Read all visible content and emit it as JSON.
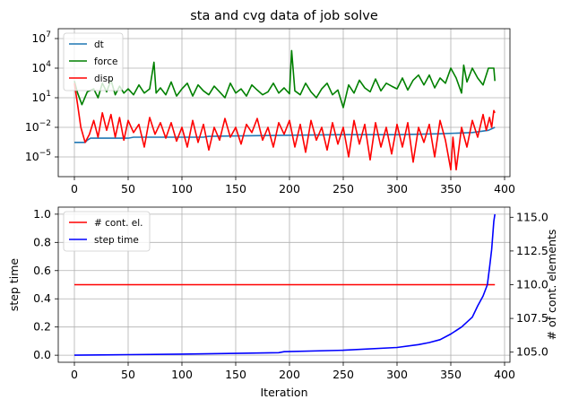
{
  "chart_data": [
    {
      "type": "line",
      "title": "sta and cvg data of job solve",
      "xlabel": "",
      "ylabel": "",
      "xlim": [
        -15,
        405
      ],
      "ylim": [
        1e-07,
        100000000.0
      ],
      "yscale": "log",
      "grid": true,
      "xticks": [
        0,
        50,
        100,
        150,
        200,
        250,
        300,
        350,
        400
      ],
      "xtick_labels": [
        "0",
        "50",
        "100",
        "150",
        "200",
        "250",
        "300",
        "350",
        "400"
      ],
      "ytick_exponents": [
        -5,
        -2,
        1,
        4,
        7
      ],
      "legend_position": "top-left",
      "series": [
        {
          "name": "dt",
          "color": "#1f77b4",
          "points": [
            [
              0,
              0.0003
            ],
            [
              10,
              0.0003
            ],
            [
              12,
              0.0005
            ],
            [
              15,
              0.0008
            ],
            [
              50,
              0.0008
            ],
            [
              55,
              0.001
            ],
            [
              120,
              0.001
            ],
            [
              125,
              0.0012
            ],
            [
              160,
              0.0014
            ],
            [
              200,
              0.0016
            ],
            [
              250,
              0.0018
            ],
            [
              300,
              0.0018
            ],
            [
              340,
              0.0022
            ],
            [
              370,
              0.003
            ],
            [
              385,
              0.005
            ],
            [
              391,
              0.01
            ]
          ]
        },
        {
          "name": "force",
          "color": "#008000",
          "points": [
            [
              0,
              500
            ],
            [
              3,
              30
            ],
            [
              7,
              2
            ],
            [
              12,
              40
            ],
            [
              18,
              80
            ],
            [
              22,
              10
            ],
            [
              26,
              300
            ],
            [
              30,
              40
            ],
            [
              34,
              600
            ],
            [
              38,
              20
            ],
            [
              42,
              150
            ],
            [
              46,
              30
            ],
            [
              50,
              80
            ],
            [
              55,
              20
            ],
            [
              60,
              200
            ],
            [
              65,
              30
            ],
            [
              70,
              80
            ],
            [
              74,
              40000
            ],
            [
              76,
              30
            ],
            [
              80,
              100
            ],
            [
              85,
              20
            ],
            [
              90,
              400
            ],
            [
              95,
              15
            ],
            [
              100,
              80
            ],
            [
              105,
              300
            ],
            [
              110,
              15
            ],
            [
              115,
              200
            ],
            [
              120,
              50
            ],
            [
              125,
              20
            ],
            [
              130,
              150
            ],
            [
              135,
              40
            ],
            [
              140,
              10
            ],
            [
              145,
              300
            ],
            [
              150,
              30
            ],
            [
              155,
              80
            ],
            [
              160,
              15
            ],
            [
              165,
              200
            ],
            [
              170,
              60
            ],
            [
              175,
              20
            ],
            [
              180,
              40
            ],
            [
              185,
              300
            ],
            [
              190,
              30
            ],
            [
              195,
              100
            ],
            [
              200,
              25
            ],
            [
              202,
              600000
            ],
            [
              205,
              50
            ],
            [
              210,
              20
            ],
            [
              215,
              300
            ],
            [
              220,
              40
            ],
            [
              225,
              10
            ],
            [
              230,
              80
            ],
            [
              235,
              300
            ],
            [
              240,
              20
            ],
            [
              245,
              60
            ],
            [
              250,
              1
            ],
            [
              255,
              200
            ],
            [
              260,
              30
            ],
            [
              265,
              600
            ],
            [
              270,
              100
            ],
            [
              275,
              40
            ],
            [
              280,
              800
            ],
            [
              285,
              50
            ],
            [
              290,
              300
            ],
            [
              295,
              150
            ],
            [
              300,
              80
            ],
            [
              305,
              1000
            ],
            [
              310,
              60
            ],
            [
              315,
              600
            ],
            [
              320,
              2000
            ],
            [
              325,
              200
            ],
            [
              330,
              2000
            ],
            [
              335,
              100
            ],
            [
              340,
              1000
            ],
            [
              345,
              300
            ],
            [
              350,
              10000
            ],
            [
              355,
              1000
            ],
            [
              360,
              30
            ],
            [
              362,
              20000
            ],
            [
              365,
              400
            ],
            [
              370,
              10000
            ],
            [
              375,
              1000
            ],
            [
              380,
              200
            ],
            [
              385,
              10000
            ],
            [
              390,
              10000
            ],
            [
              391,
              500
            ]
          ]
        },
        {
          "name": "disp",
          "color": "#ff0000",
          "points": [
            [
              0,
              300
            ],
            [
              3,
              2
            ],
            [
              6,
              0.01
            ],
            [
              10,
              0.0003
            ],
            [
              14,
              0.002
            ],
            [
              18,
              0.05
            ],
            [
              22,
              0.001
            ],
            [
              26,
              0.3
            ],
            [
              30,
              0.005
            ],
            [
              34,
              0.2
            ],
            [
              38,
              0.001
            ],
            [
              42,
              0.1
            ],
            [
              46,
              0.0005
            ],
            [
              50,
              0.05
            ],
            [
              55,
              0.003
            ],
            [
              60,
              0.02
            ],
            [
              65,
              0.0001
            ],
            [
              70,
              0.1
            ],
            [
              75,
              0.002
            ],
            [
              80,
              0.03
            ],
            [
              85,
              0.0008
            ],
            [
              90,
              0.03
            ],
            [
              95,
              0.0004
            ],
            [
              100,
              0.01
            ],
            [
              105,
              0.0001
            ],
            [
              110,
              0.05
            ],
            [
              115,
              0.0003
            ],
            [
              120,
              0.02
            ],
            [
              125,
              5e-05
            ],
            [
              130,
              0.01
            ],
            [
              135,
              0.0005
            ],
            [
              140,
              0.08
            ],
            [
              145,
              0.001
            ],
            [
              150,
              0.01
            ],
            [
              155,
              0.0002
            ],
            [
              160,
              0.02
            ],
            [
              165,
              0.003
            ],
            [
              170,
              0.08
            ],
            [
              175,
              0.0005
            ],
            [
              180,
              0.01
            ],
            [
              185,
              0.0001
            ],
            [
              190,
              0.03
            ],
            [
              195,
              0.002
            ],
            [
              200,
              0.05
            ],
            [
              205,
              0.0001
            ],
            [
              210,
              0.02
            ],
            [
              215,
              3e-05
            ],
            [
              220,
              0.05
            ],
            [
              225,
              0.0005
            ],
            [
              230,
              0.01
            ],
            [
              235,
              5e-05
            ],
            [
              240,
              0.03
            ],
            [
              245,
              0.0002
            ],
            [
              250,
              0.01
            ],
            [
              255,
              1e-05
            ],
            [
              260,
              0.05
            ],
            [
              265,
              0.0002
            ],
            [
              270,
              0.02
            ],
            [
              275,
              5e-06
            ],
            [
              280,
              0.03
            ],
            [
              285,
              0.0001
            ],
            [
              290,
              0.01
            ],
            [
              295,
              2e-05
            ],
            [
              300,
              0.02
            ],
            [
              305,
              0.0001
            ],
            [
              310,
              0.03
            ],
            [
              315,
              3e-06
            ],
            [
              320,
              0.01
            ],
            [
              325,
              0.0003
            ],
            [
              330,
              0.02
            ],
            [
              335,
              1e-05
            ],
            [
              340,
              0.05
            ],
            [
              345,
              0.0005
            ],
            [
              350,
              5e-07
            ],
            [
              352,
              0.001
            ],
            [
              355,
              5e-07
            ],
            [
              360,
              0.01
            ],
            [
              365,
              0.0001
            ],
            [
              370,
              0.05
            ],
            [
              375,
              0.001
            ],
            [
              380,
              0.2
            ],
            [
              383,
              0.005
            ],
            [
              386,
              0.1
            ],
            [
              388,
              0.01
            ],
            [
              390,
              0.5
            ],
            [
              391,
              0.3
            ]
          ]
        }
      ]
    },
    {
      "type": "line",
      "title": "",
      "xlabel": "Iteration",
      "ylabel": "step time",
      "y2label": "# of cont. elements",
      "xlim": [
        -15,
        405
      ],
      "ylim": [
        -0.05,
        1.05
      ],
      "y2lim": [
        104.25,
        115.75
      ],
      "grid": true,
      "xticks": [
        0,
        50,
        100,
        150,
        200,
        250,
        300,
        350,
        400
      ],
      "xtick_labels": [
        "0",
        "50",
        "100",
        "150",
        "200",
        "250",
        "300",
        "350",
        "400"
      ],
      "yticks": [
        0.0,
        0.2,
        0.4,
        0.6,
        0.8,
        1.0
      ],
      "ytick_labels": [
        "0.0",
        "0.2",
        "0.4",
        "0.6",
        "0.8",
        "1.0"
      ],
      "y2ticks": [
        105.0,
        107.5,
        110.0,
        112.5,
        115.0
      ],
      "y2tick_labels": [
        "105.0",
        "107.5",
        "110.0",
        "112.5",
        "115.0"
      ],
      "legend_position": "top-left",
      "series": [
        {
          "name": "# cont. el.",
          "color": "#ff0000",
          "axis": "right",
          "points": [
            [
              0,
              110
            ],
            [
              391,
              110
            ]
          ]
        },
        {
          "name": "step time",
          "color": "#0000ff",
          "axis": "left",
          "points": [
            [
              0,
              0.0
            ],
            [
              50,
              0.004
            ],
            [
              100,
              0.008
            ],
            [
              150,
              0.013
            ],
            [
              190,
              0.018
            ],
            [
              195,
              0.025
            ],
            [
              250,
              0.035
            ],
            [
              300,
              0.055
            ],
            [
              320,
              0.075
            ],
            [
              330,
              0.09
            ],
            [
              340,
              0.11
            ],
            [
              350,
              0.15
            ],
            [
              360,
              0.2
            ],
            [
              370,
              0.27
            ],
            [
              375,
              0.35
            ],
            [
              380,
              0.42
            ],
            [
              384,
              0.5
            ],
            [
              386,
              0.62
            ],
            [
              388,
              0.75
            ],
            [
              389,
              0.85
            ],
            [
              390,
              0.95
            ],
            [
              391,
              1.0
            ]
          ]
        }
      ]
    }
  ]
}
